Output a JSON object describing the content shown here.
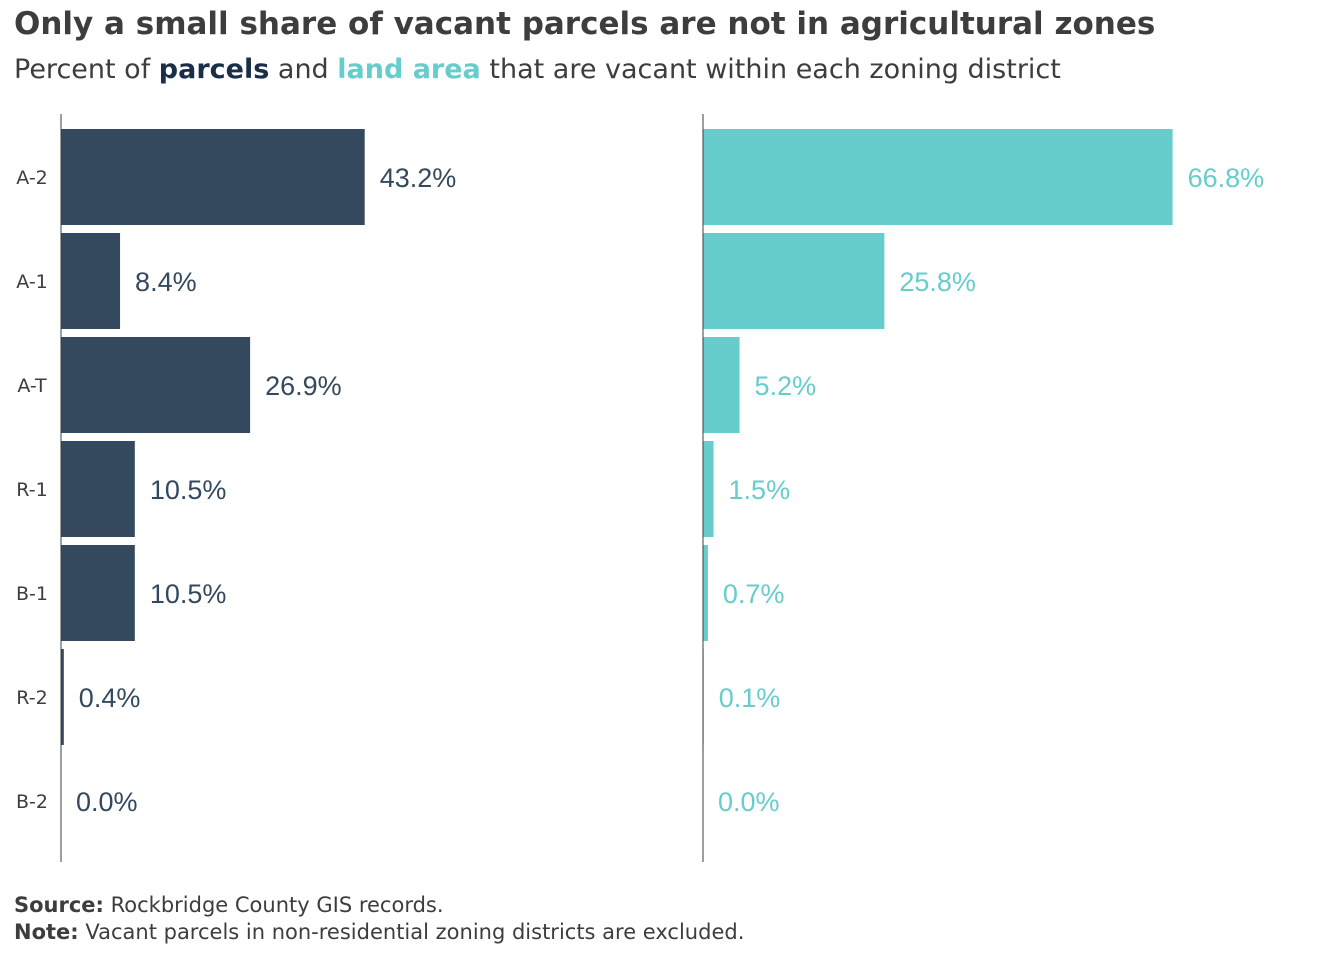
{
  "title": "Only a small share of vacant parcels are not in agricultural zones",
  "subtitle": {
    "prefix": "Percent of ",
    "parcels": "parcels",
    "middle": " and ",
    "land_area": "land area",
    "suffix": " that are vacant within each zoning district"
  },
  "colors": {
    "parcels": "#34495e",
    "land_area": "#66cdcc",
    "title": "#3d3d3d",
    "parcels_highlight": "#1a2e4a"
  },
  "chart_data": {
    "type": "bar",
    "orientation": "horizontal",
    "categories": [
      "A-2",
      "A-1",
      "A-T",
      "R-1",
      "B-1",
      "R-2",
      "B-2"
    ],
    "series": [
      {
        "name": "parcels",
        "values": [
          43.2,
          8.4,
          26.9,
          10.5,
          10.5,
          0.4,
          0.0
        ],
        "labels": [
          "43.2%",
          "8.4%",
          "26.9%",
          "10.5%",
          "10.5%",
          "0.4%",
          "0.0%"
        ]
      },
      {
        "name": "land area",
        "values": [
          66.8,
          25.8,
          5.2,
          1.5,
          0.7,
          0.1,
          0.0
        ],
        "labels": [
          "66.8%",
          "25.8%",
          "5.2%",
          "1.5%",
          "0.7%",
          "0.1%",
          "0.0%"
        ]
      }
    ],
    "xlim": [
      0,
      100
    ],
    "grid": false,
    "legend": "none"
  },
  "footer": {
    "source_label": "Source:",
    "source_text": "Rockbridge County GIS records.",
    "note_label": "Note:",
    "note_text": "Vacant parcels in non-residential zoning districts are excluded."
  }
}
